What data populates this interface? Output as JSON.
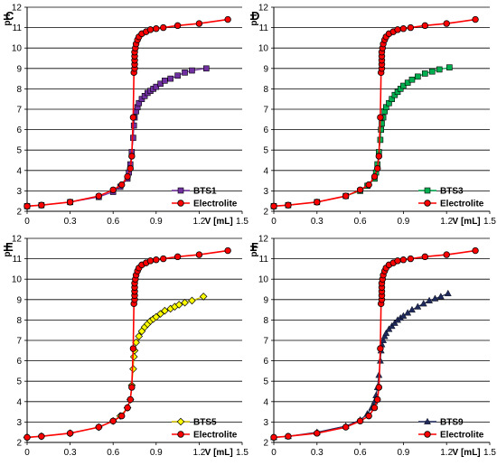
{
  "chart_data": [
    {
      "type": "line",
      "panel_label": "C",
      "ylabel": "pH",
      "xlabel": "V [mL]",
      "xlim": [
        0,
        1.5
      ],
      "ylim": [
        2,
        12
      ],
      "x_ticks": [
        "0",
        "0.3",
        "0.6",
        "0.9",
        "1.2",
        "1.5"
      ],
      "y_ticks": [
        "2",
        "3",
        "4",
        "5",
        "6",
        "7",
        "8",
        "9",
        "10",
        "11",
        "12"
      ],
      "grid": "horizontal",
      "legend_position": "bottom-right",
      "series": [
        {
          "name": "BTS1",
          "color": "#7030a0",
          "marker": "square",
          "x": [
            0,
            0.1,
            0.3,
            0.5,
            0.6,
            0.65,
            0.7,
            0.71,
            0.72,
            0.73,
            0.74,
            0.745,
            0.75,
            0.76,
            0.77,
            0.78,
            0.8,
            0.82,
            0.84,
            0.86,
            0.88,
            0.9,
            0.93,
            0.96,
            1.0,
            1.05,
            1.1,
            1.15,
            1.25
          ],
          "y": [
            2.25,
            2.3,
            2.45,
            2.7,
            2.95,
            3.2,
            3.6,
            3.9,
            4.3,
            4.9,
            5.6,
            6.2,
            6.6,
            6.9,
            7.1,
            7.3,
            7.5,
            7.65,
            7.8,
            7.9,
            8.0,
            8.1,
            8.25,
            8.4,
            8.5,
            8.65,
            8.8,
            8.9,
            9.0
          ]
        },
        {
          "name": "Electrolite",
          "color": "#ff0000",
          "marker": "circle",
          "x": [
            0,
            0.1,
            0.3,
            0.5,
            0.6,
            0.66,
            0.7,
            0.72,
            0.73,
            0.74,
            0.745,
            0.75,
            0.75,
            0.75,
            0.75,
            0.75,
            0.755,
            0.76,
            0.77,
            0.78,
            0.8,
            0.83,
            0.86,
            0.9,
            0.95,
            1.05,
            1.2,
            1.4
          ],
          "y": [
            2.25,
            2.3,
            2.45,
            2.75,
            3.05,
            3.3,
            3.7,
            4.1,
            4.7,
            6.6,
            8.8,
            9.0,
            9.2,
            9.4,
            9.6,
            9.8,
            10.0,
            10.2,
            10.4,
            10.55,
            10.7,
            10.8,
            10.9,
            10.95,
            11.0,
            11.1,
            11.2,
            11.4
          ]
        }
      ]
    },
    {
      "type": "line",
      "panel_label": "D",
      "ylabel": "pH",
      "xlabel": "V [mL]",
      "xlim": [
        0,
        1.5
      ],
      "ylim": [
        2,
        12
      ],
      "x_ticks": [
        "0",
        "0.3",
        "0.6",
        "0.9",
        "1.2",
        "1.5"
      ],
      "y_ticks": [
        "2",
        "3",
        "4",
        "5",
        "6",
        "7",
        "8",
        "9",
        "10",
        "11",
        "12"
      ],
      "grid": "horizontal",
      "legend_position": "bottom-right",
      "series": [
        {
          "name": "BTS3",
          "color": "#00b050",
          "marker": "square",
          "x": [
            0,
            0.1,
            0.3,
            0.5,
            0.6,
            0.65,
            0.7,
            0.71,
            0.72,
            0.73,
            0.74,
            0.745,
            0.75,
            0.76,
            0.77,
            0.78,
            0.8,
            0.82,
            0.84,
            0.86,
            0.88,
            0.9,
            0.93,
            0.96,
            1.0,
            1.05,
            1.1,
            1.15,
            1.22
          ],
          "y": [
            2.25,
            2.3,
            2.45,
            2.75,
            3.0,
            3.25,
            3.6,
            3.9,
            4.3,
            4.9,
            5.5,
            6.0,
            6.3,
            6.6,
            6.9,
            7.1,
            7.3,
            7.5,
            7.7,
            7.85,
            8.0,
            8.15,
            8.3,
            8.45,
            8.6,
            8.75,
            8.85,
            8.95,
            9.05
          ]
        },
        {
          "name": "Electrolite",
          "color": "#ff0000",
          "marker": "circle",
          "x": [
            0,
            0.1,
            0.3,
            0.5,
            0.6,
            0.66,
            0.7,
            0.72,
            0.73,
            0.74,
            0.745,
            0.75,
            0.75,
            0.75,
            0.75,
            0.75,
            0.755,
            0.76,
            0.77,
            0.78,
            0.8,
            0.83,
            0.86,
            0.9,
            0.95,
            1.05,
            1.2,
            1.4
          ],
          "y": [
            2.25,
            2.3,
            2.45,
            2.75,
            3.05,
            3.3,
            3.7,
            4.1,
            4.7,
            6.6,
            8.8,
            9.0,
            9.2,
            9.4,
            9.6,
            9.8,
            10.0,
            10.2,
            10.4,
            10.55,
            10.7,
            10.8,
            10.9,
            10.95,
            11.0,
            11.1,
            11.2,
            11.4
          ]
        }
      ]
    },
    {
      "type": "line",
      "panel_label": "E",
      "ylabel": "pH",
      "xlabel": "V [mL]",
      "xlim": [
        0,
        1.5
      ],
      "ylim": [
        2,
        12
      ],
      "x_ticks": [
        "0",
        "0.3",
        "0.6",
        "0.9",
        "1.2",
        "1.5"
      ],
      "y_ticks": [
        "2",
        "3",
        "4",
        "5",
        "6",
        "7",
        "8",
        "9",
        "10",
        "11",
        "12"
      ],
      "grid": "horizontal",
      "legend_position": "bottom-right",
      "series": [
        {
          "name": "BTS5",
          "color": "#ffff00",
          "marker": "diamond",
          "x": [
            0,
            0.1,
            0.3,
            0.5,
            0.6,
            0.65,
            0.7,
            0.72,
            0.73,
            0.74,
            0.745,
            0.75,
            0.76,
            0.78,
            0.8,
            0.82,
            0.84,
            0.86,
            0.88,
            0.9,
            0.93,
            0.96,
            1.0,
            1.03,
            1.06,
            1.1,
            1.15,
            1.23
          ],
          "y": [
            2.25,
            2.3,
            2.45,
            2.75,
            3.05,
            3.3,
            3.7,
            4.1,
            4.8,
            5.6,
            6.2,
            6.5,
            6.9,
            7.2,
            7.45,
            7.65,
            7.8,
            7.95,
            8.05,
            8.15,
            8.3,
            8.45,
            8.55,
            8.65,
            8.75,
            8.85,
            8.95,
            9.15
          ]
        },
        {
          "name": "Electrolite",
          "color": "#ff0000",
          "marker": "circle",
          "x": [
            0,
            0.1,
            0.3,
            0.5,
            0.6,
            0.66,
            0.7,
            0.72,
            0.73,
            0.74,
            0.745,
            0.75,
            0.75,
            0.75,
            0.75,
            0.75,
            0.755,
            0.76,
            0.77,
            0.78,
            0.8,
            0.83,
            0.86,
            0.9,
            0.95,
            1.05,
            1.2,
            1.4
          ],
          "y": [
            2.25,
            2.3,
            2.45,
            2.75,
            3.05,
            3.3,
            3.7,
            4.1,
            4.7,
            6.6,
            8.8,
            9.0,
            9.2,
            9.4,
            9.6,
            9.8,
            10.0,
            10.2,
            10.4,
            10.55,
            10.7,
            10.8,
            10.9,
            10.95,
            11.0,
            11.1,
            11.2,
            11.4
          ]
        }
      ]
    },
    {
      "type": "line",
      "panel_label": "F",
      "ylabel": "pH",
      "xlabel": "V [mL]",
      "xlim": [
        0,
        1.5
      ],
      "ylim": [
        2,
        12
      ],
      "x_ticks": [
        "0",
        "0.3",
        "0.6",
        "0.9",
        "1.2",
        "1.5"
      ],
      "y_ticks": [
        "2",
        "3",
        "4",
        "5",
        "6",
        "7",
        "8",
        "9",
        "10",
        "11",
        "12"
      ],
      "grid": "horizontal",
      "legend_position": "bottom-right",
      "series": [
        {
          "name": "BTS9",
          "color": "#1f2a5c",
          "marker": "triangle",
          "x": [
            0,
            0.1,
            0.3,
            0.5,
            0.6,
            0.65,
            0.68,
            0.7,
            0.71,
            0.72,
            0.73,
            0.74,
            0.745,
            0.75,
            0.76,
            0.77,
            0.78,
            0.8,
            0.82,
            0.84,
            0.86,
            0.88,
            0.9,
            0.93,
            0.96,
            1.0,
            1.04,
            1.08,
            1.12,
            1.16,
            1.21
          ],
          "y": [
            2.25,
            2.3,
            2.5,
            2.8,
            3.1,
            3.4,
            3.7,
            4.0,
            4.3,
            4.7,
            5.3,
            6.0,
            6.5,
            6.8,
            7.0,
            7.2,
            7.35,
            7.55,
            7.7,
            7.85,
            8.0,
            8.1,
            8.2,
            8.35,
            8.5,
            8.65,
            8.8,
            8.95,
            9.05,
            9.15,
            9.3
          ]
        },
        {
          "name": "Electrolite",
          "color": "#ff0000",
          "marker": "circle",
          "x": [
            0,
            0.1,
            0.3,
            0.5,
            0.6,
            0.66,
            0.7,
            0.72,
            0.73,
            0.74,
            0.745,
            0.75,
            0.75,
            0.75,
            0.75,
            0.75,
            0.755,
            0.76,
            0.77,
            0.78,
            0.8,
            0.83,
            0.86,
            0.9,
            0.95,
            1.05,
            1.2,
            1.4
          ],
          "y": [
            2.25,
            2.3,
            2.45,
            2.75,
            3.05,
            3.3,
            3.7,
            4.1,
            4.7,
            6.6,
            8.8,
            9.0,
            9.2,
            9.4,
            9.6,
            9.8,
            10.0,
            10.2,
            10.4,
            10.55,
            10.7,
            10.8,
            10.9,
            10.95,
            11.0,
            11.1,
            11.2,
            11.4
          ]
        }
      ]
    }
  ]
}
